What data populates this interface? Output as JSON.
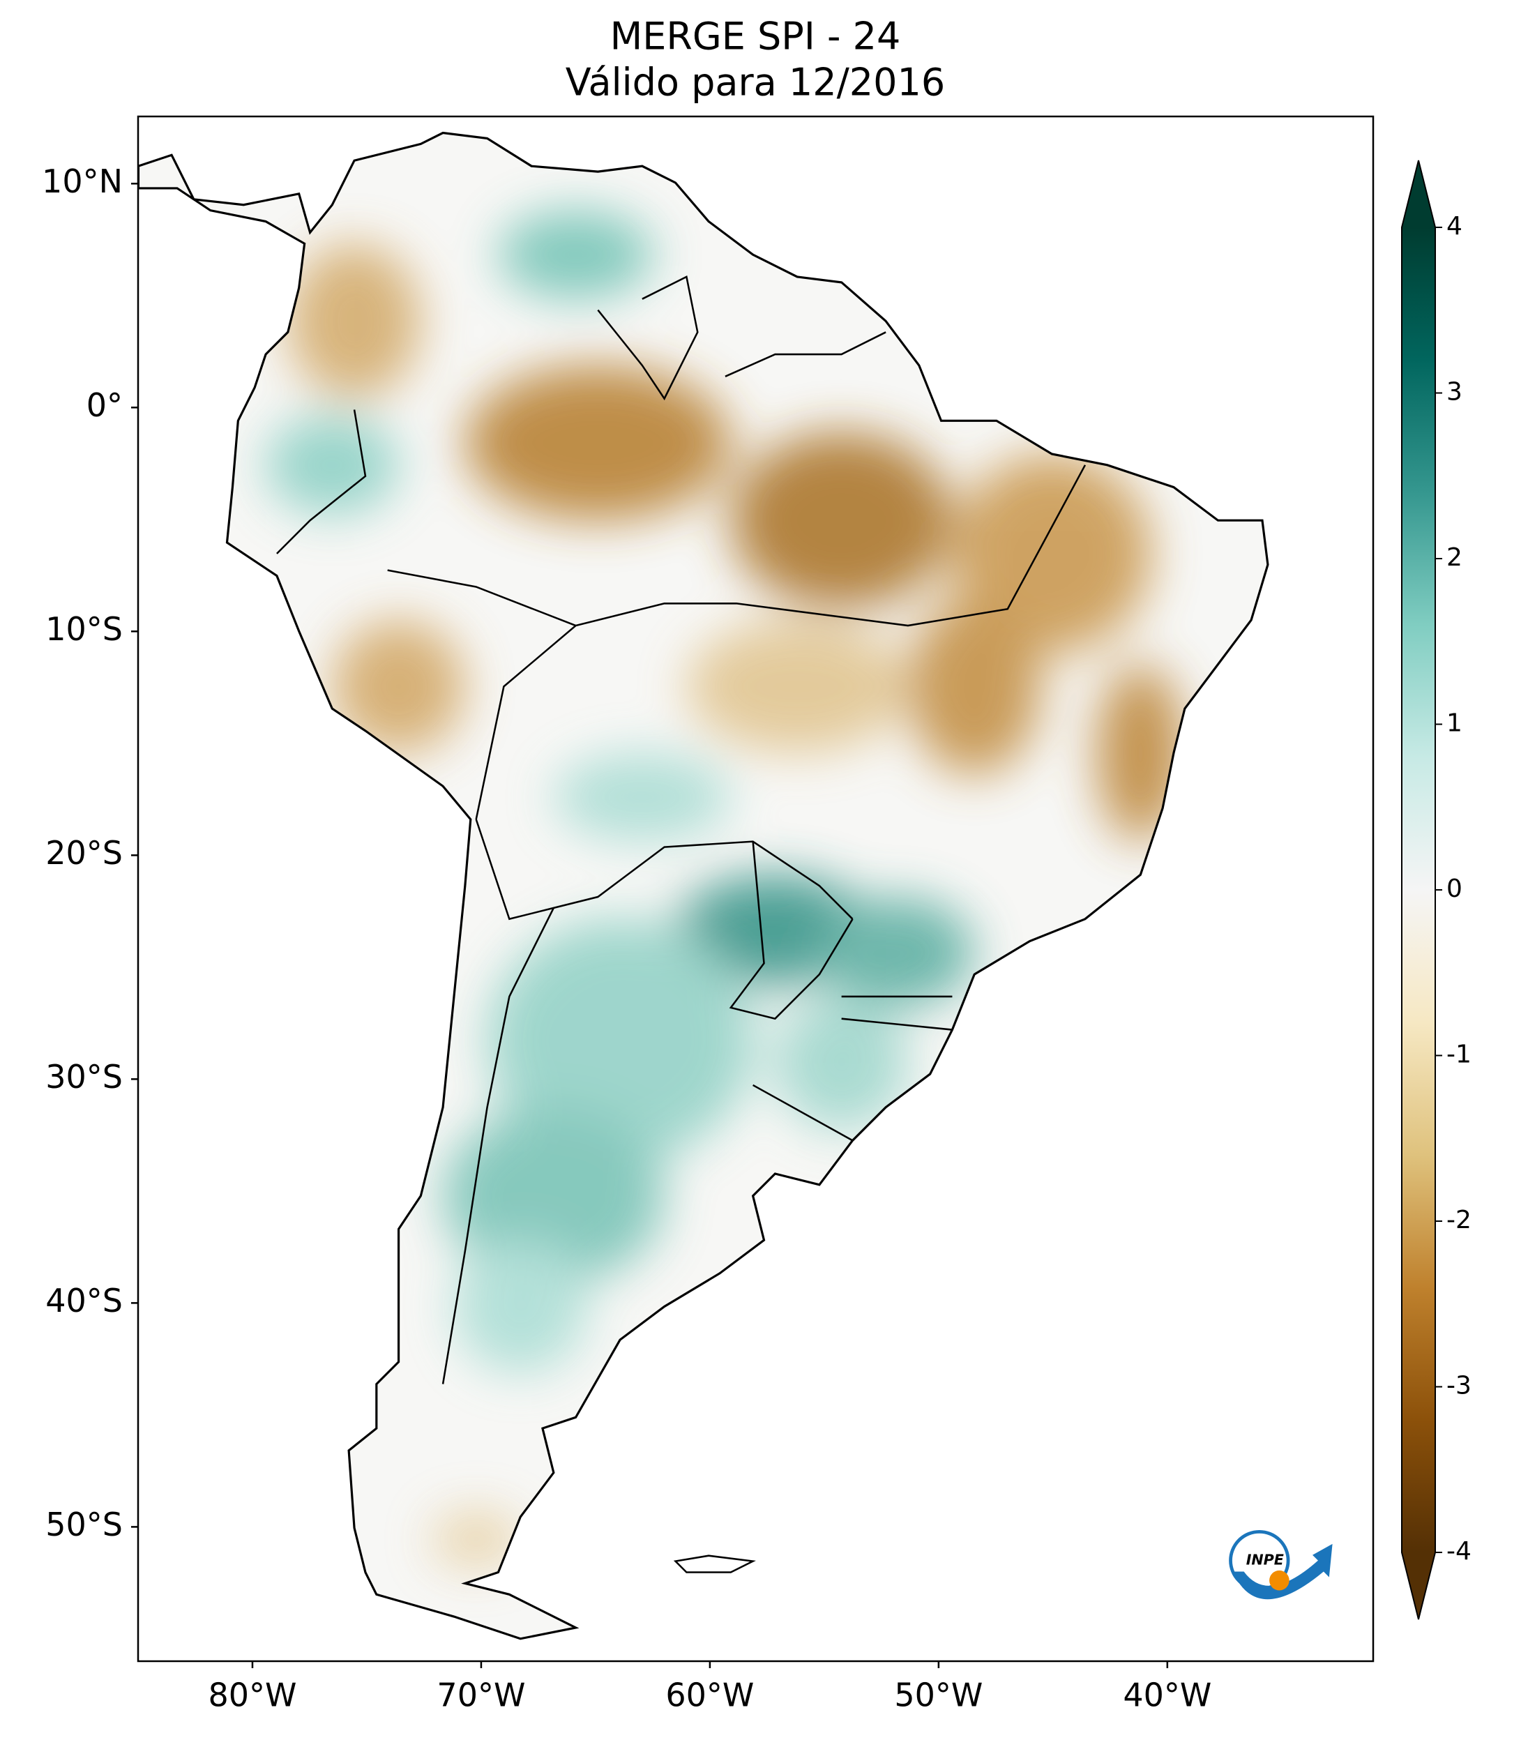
{
  "chart_data": {
    "type": "map",
    "title": [
      "MERGE   SPI - 24",
      "Válido para 12/2016"
    ],
    "xlim": [
      -85,
      -31
    ],
    "ylim": [
      -56,
      13
    ],
    "xticks": [
      {
        "value": -80,
        "label": "80°W"
      },
      {
        "value": -70,
        "label": "70°W"
      },
      {
        "value": -60,
        "label": "60°W"
      },
      {
        "value": -50,
        "label": "50°W"
      },
      {
        "value": -40,
        "label": "40°W"
      }
    ],
    "yticks": [
      {
        "value": 10,
        "label": "10°N"
      },
      {
        "value": 0,
        "label": "0°"
      },
      {
        "value": -10,
        "label": "10°S"
      },
      {
        "value": -20,
        "label": "20°S"
      },
      {
        "value": -30,
        "label": "30°S"
      },
      {
        "value": -40,
        "label": "40°S"
      },
      {
        "value": -50,
        "label": "50°S"
      }
    ],
    "colorbar": {
      "cmap": "BrBG",
      "colors": [
        "#543005",
        "#8c510a",
        "#bf812d",
        "#dfc27d",
        "#f6e8c3",
        "#f5f5f5",
        "#c7eae5",
        "#80cdc1",
        "#35978f",
        "#01665e",
        "#003c30"
      ],
      "lim": [
        -4,
        4
      ],
      "ticks": [
        -4,
        -3,
        -2,
        -1,
        0,
        1,
        2,
        3,
        4
      ],
      "extend": "both"
    },
    "logo": "INPE"
  }
}
